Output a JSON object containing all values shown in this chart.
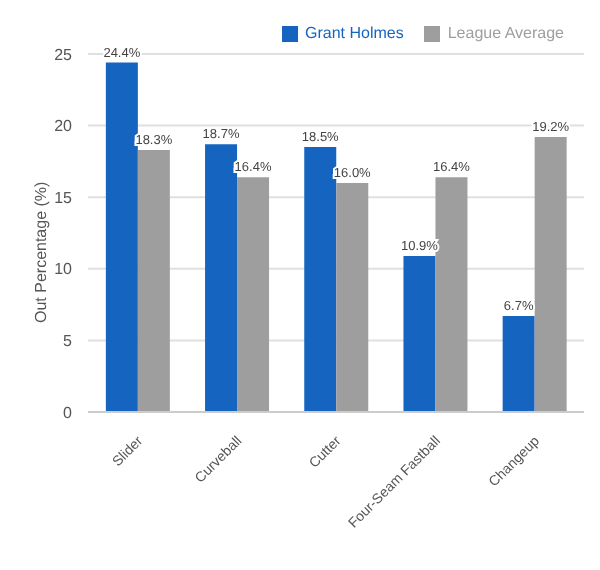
{
  "chart_data": {
    "type": "bar",
    "ylabel": "Out Percentage (%)",
    "categories": [
      "Slider",
      "Curveball",
      "Cutter",
      "Four-Seam Fastball",
      "Changeup"
    ],
    "series": [
      {
        "name": "Grant Holmes",
        "color": "#1565c0",
        "values": [
          24.4,
          18.7,
          18.5,
          10.9,
          6.7
        ],
        "value_labels": [
          "24.4%",
          "18.7%",
          "18.5%",
          "10.9%",
          "6.7%"
        ]
      },
      {
        "name": "League Average",
        "color": "#9e9e9e",
        "values": [
          18.3,
          16.4,
          16.0,
          16.4,
          19.2
        ],
        "value_labels": [
          "18.3%",
          "16.4%",
          "16.0%",
          "16.4%",
          "19.2%"
        ]
      }
    ],
    "ylim": [
      0,
      25
    ],
    "yticks": [
      0,
      5,
      10,
      15,
      20,
      25
    ],
    "grid": "y",
    "legend": "top right"
  }
}
